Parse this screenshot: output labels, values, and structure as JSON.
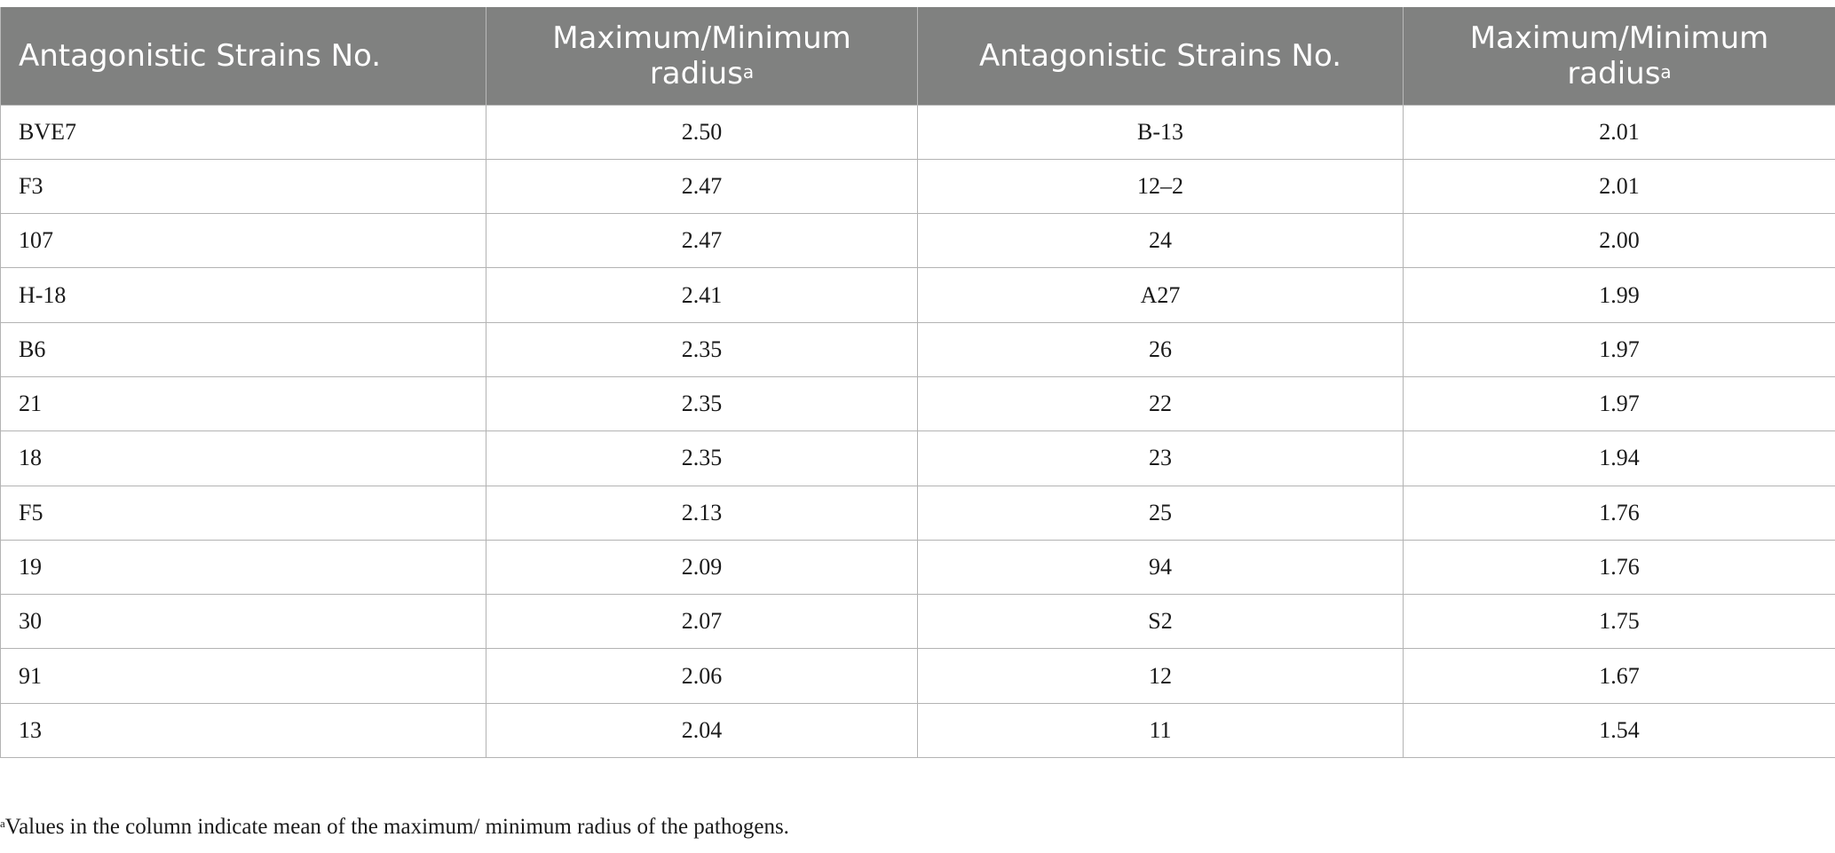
{
  "table": {
    "headers": [
      {
        "text": "Antagonistic Strains No.",
        "sup": ""
      },
      {
        "text": "Maximum/Minimum radius",
        "sup": "a"
      },
      {
        "text": "Antagonistic Strains No.",
        "sup": ""
      },
      {
        "text": "Maximum/Minimum radius",
        "sup": "a"
      }
    ],
    "rows": [
      [
        "BVE7",
        "2.50",
        "B-13",
        "2.01"
      ],
      [
        "F3",
        "2.47",
        "12–2",
        "2.01"
      ],
      [
        "107",
        "2.47",
        "24",
        "2.00"
      ],
      [
        "H-18",
        "2.41",
        "A27",
        "1.99"
      ],
      [
        "B6",
        "2.35",
        "26",
        "1.97"
      ],
      [
        "21",
        "2.35",
        "22",
        "1.97"
      ],
      [
        "18",
        "2.35",
        "23",
        "1.94"
      ],
      [
        "F5",
        "2.13",
        "25",
        "1.76"
      ],
      [
        "19",
        "2.09",
        "94",
        "1.76"
      ],
      [
        "30",
        "2.07",
        "S2",
        "1.75"
      ],
      [
        "91",
        "2.06",
        "12",
        "1.67"
      ],
      [
        "13",
        "2.04",
        "11",
        "1.54"
      ]
    ]
  },
  "footnote": {
    "marker": "a",
    "text": "Values in the column indicate mean of the maximum/ minimum radius of the pathogens."
  },
  "colors": {
    "header_bg": "#808180",
    "header_text": "#ffffff",
    "grid_line": "#b3b3b3"
  }
}
